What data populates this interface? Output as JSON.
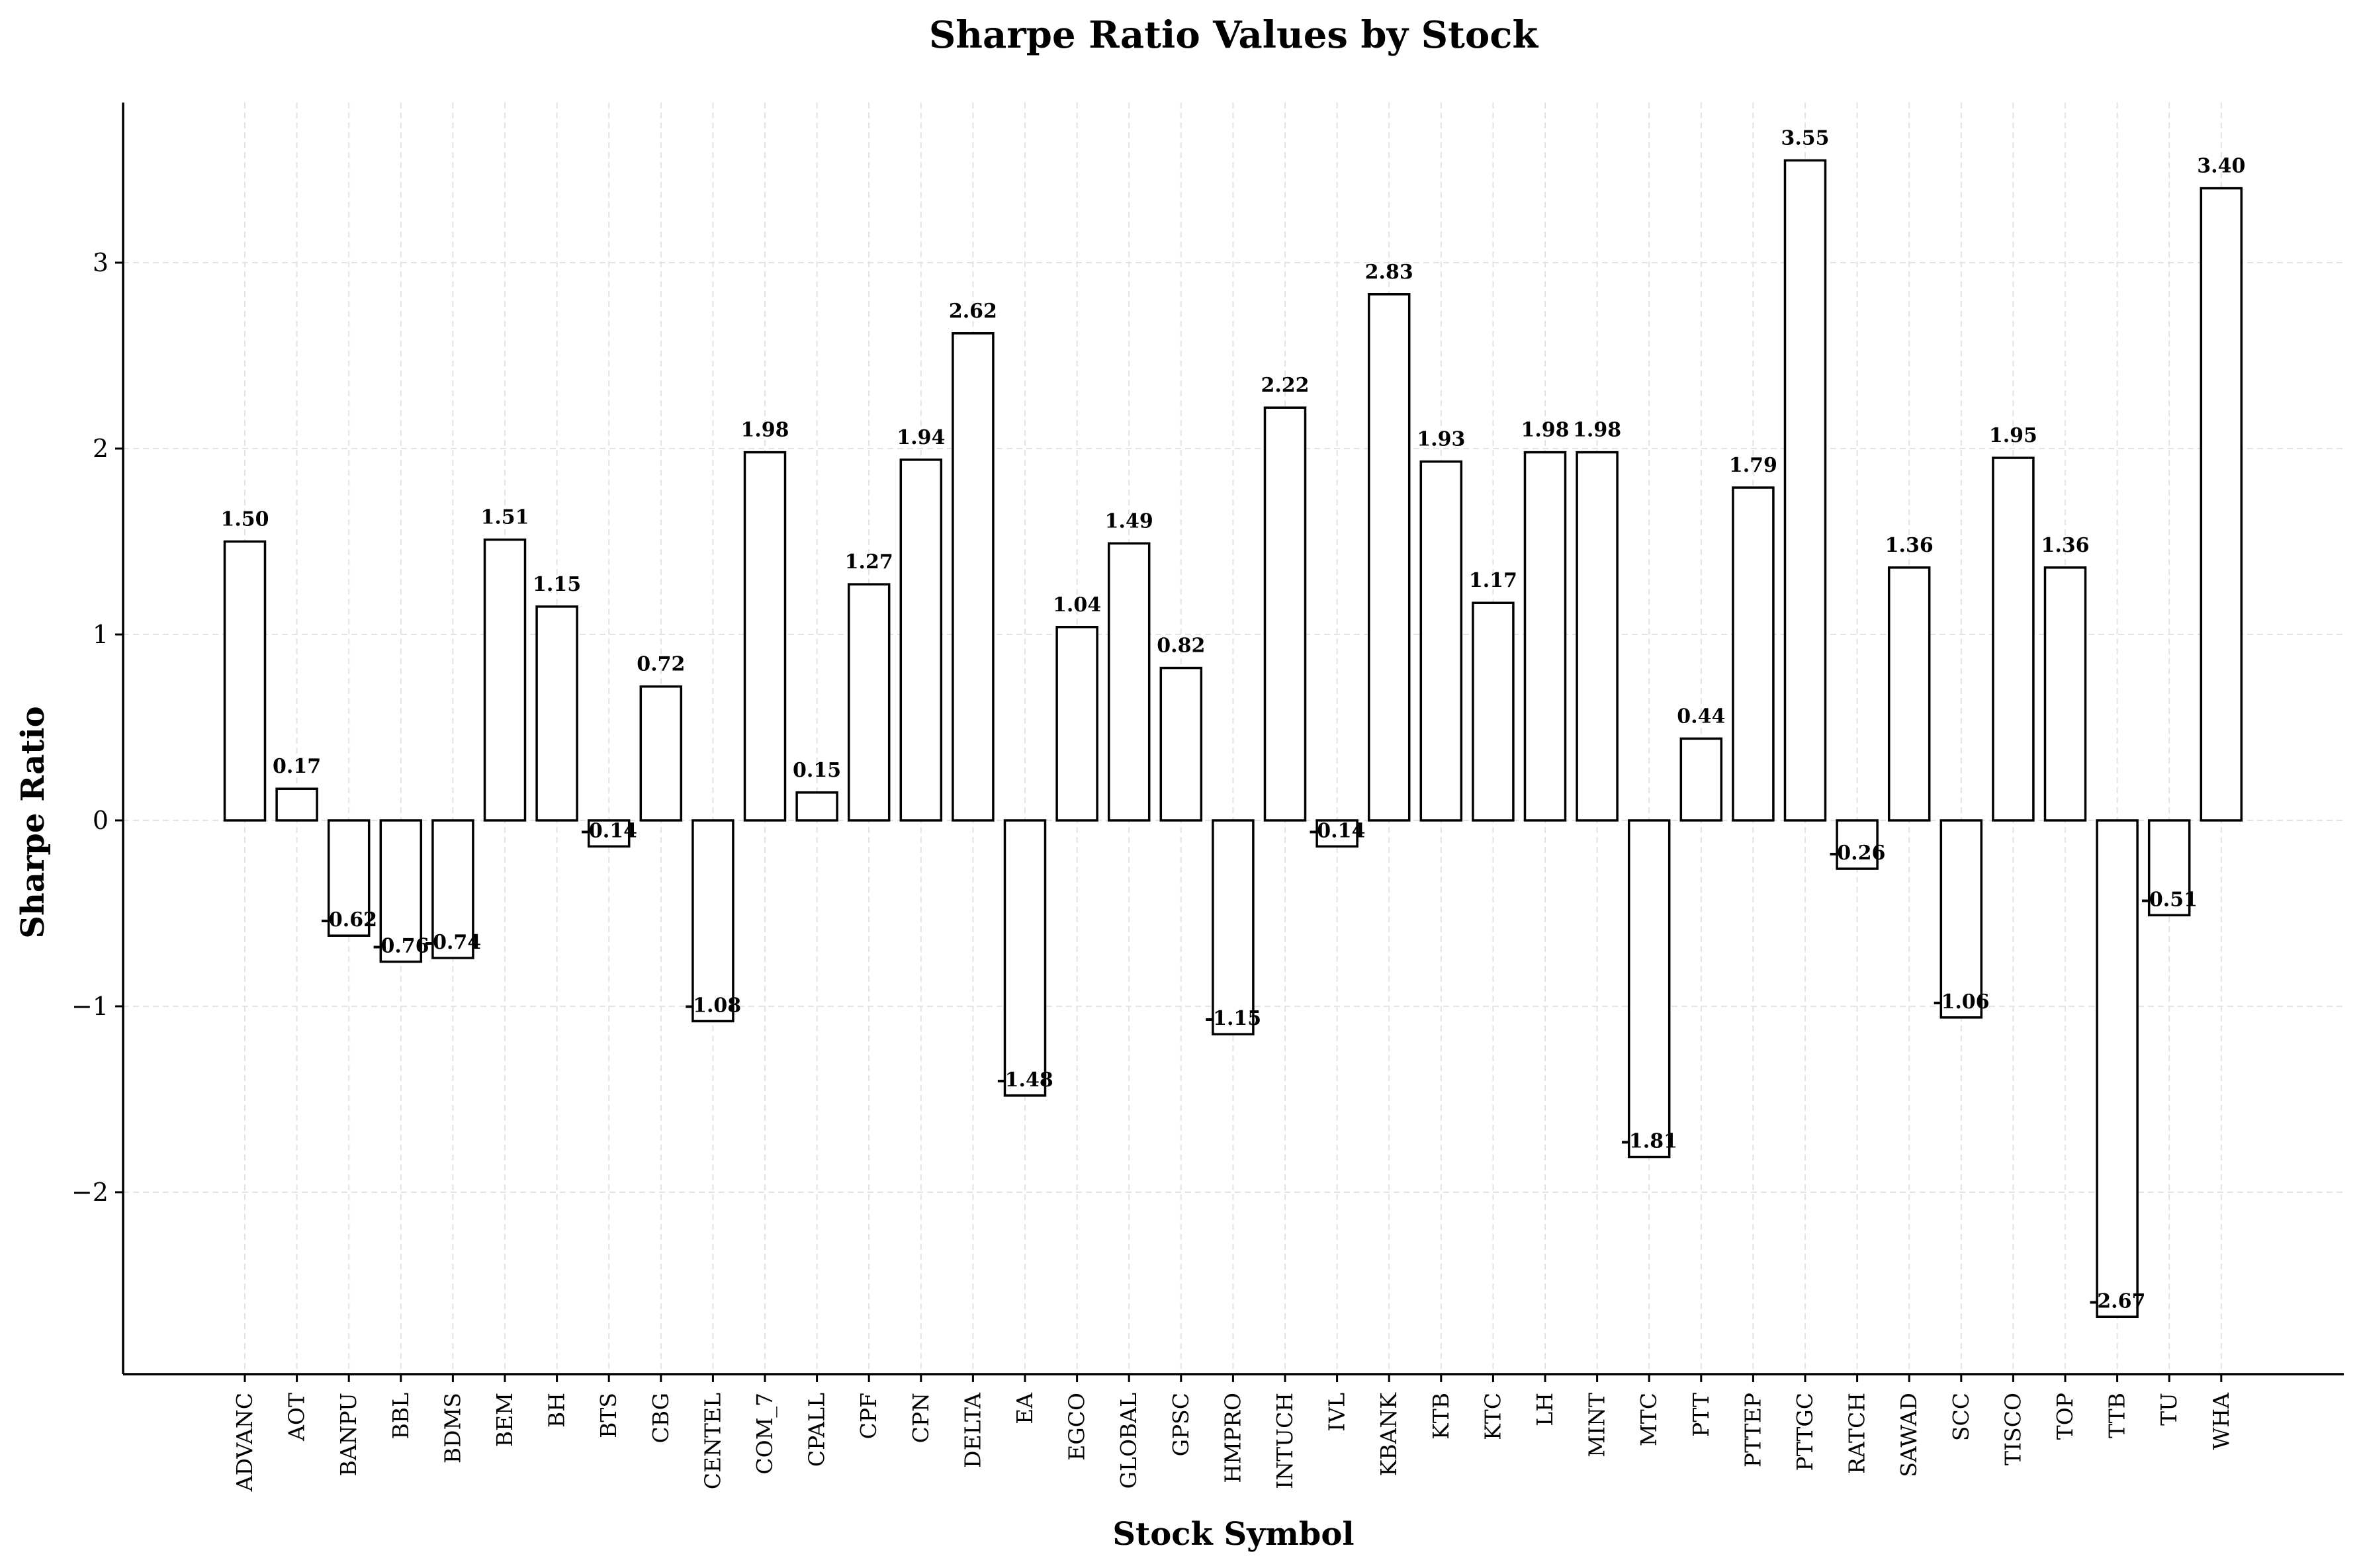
{
  "chart_data": {
    "type": "bar",
    "title": "Sharpe Ratio Values by Stock",
    "xlabel": "Stock Symbol",
    "ylabel": "Sharpe Ratio",
    "ylim": [
      -2.98,
      3.86
    ],
    "yticks": [
      -2,
      -1,
      0,
      1,
      2,
      3
    ],
    "grid": true,
    "categories": [
      "ADVANC",
      "AOT",
      "BANPU",
      "BBL",
      "BDMS",
      "BEM",
      "BH",
      "BTS",
      "CBG",
      "CENTEL",
      "COM_7",
      "CPALL",
      "CPF",
      "CPN",
      "DELTA",
      "EA",
      "EGCO",
      "GLOBAL",
      "GPSC",
      "HMPRO",
      "INTUCH",
      "IVL",
      "KBANK",
      "KTB",
      "KTC",
      "LH",
      "MINT",
      "MTC",
      "PTT",
      "PTTEP",
      "PTTGC",
      "RATCH",
      "SAWAD",
      "SCC",
      "TISCO",
      "TOP",
      "TTB",
      "TU",
      "WHA"
    ],
    "values": [
      1.5,
      0.17,
      -0.62,
      -0.76,
      -0.74,
      1.51,
      1.15,
      -0.14,
      0.72,
      -1.08,
      1.98,
      0.15,
      1.27,
      1.94,
      2.62,
      -1.48,
      1.04,
      1.49,
      0.82,
      -1.15,
      2.22,
      -0.14,
      2.83,
      1.93,
      1.17,
      1.98,
      1.98,
      -1.81,
      0.44,
      1.79,
      3.55,
      -0.26,
      1.36,
      -1.06,
      1.95,
      1.36,
      -2.67,
      -0.51,
      3.4
    ],
    "data_labels": [
      "1.50",
      "0.17",
      "-0.62",
      "-0.76",
      "-0.74",
      "1.51",
      "1.15",
      "-0.14",
      "0.72",
      "-1.08",
      "1.98",
      "0.15",
      "1.27",
      "1.94",
      "2.62",
      "-1.48",
      "1.04",
      "1.49",
      "0.82",
      "-1.15",
      "2.22",
      "-0.14",
      "2.83",
      "1.93",
      "1.17",
      "1.98",
      "1.98",
      "-1.81",
      "0.44",
      "1.79",
      "3.55",
      "-0.26",
      "1.36",
      "-1.06",
      "1.95",
      "1.36",
      "-2.67",
      "-0.51",
      "3.40"
    ],
    "ytick_labels": [
      "−2",
      "−1",
      "0",
      "1",
      "2",
      "3"
    ]
  }
}
